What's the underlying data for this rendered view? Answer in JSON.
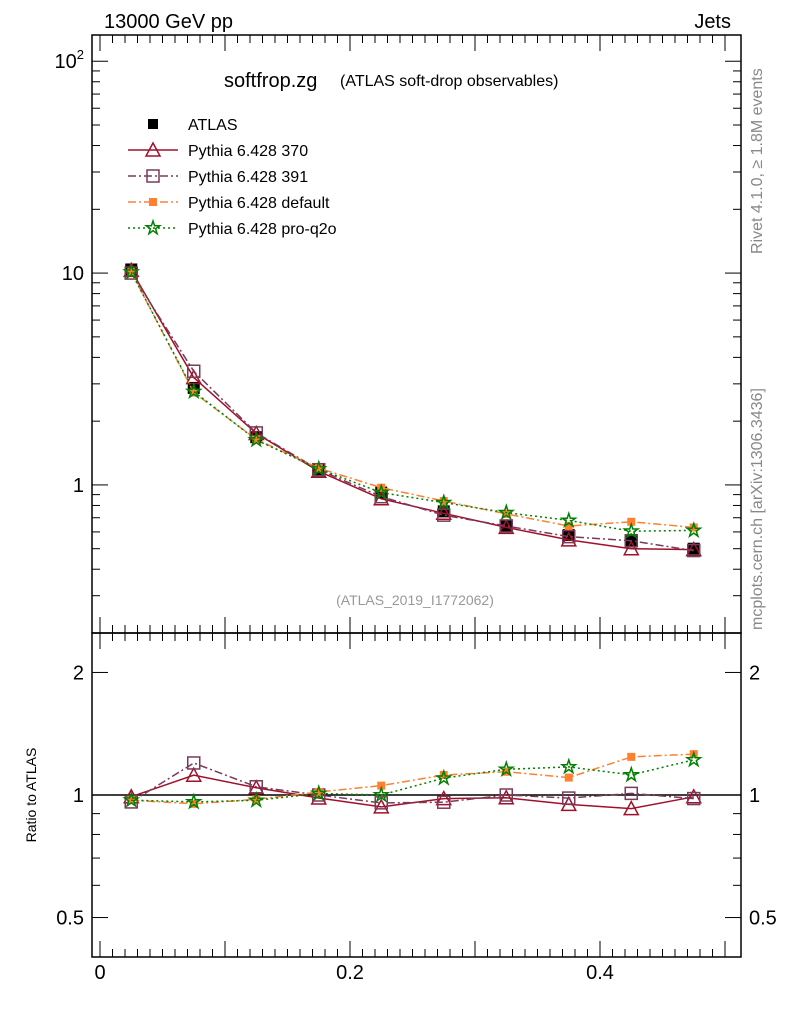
{
  "header": {
    "energy_label": "13000 GeV pp",
    "process_label": "Jets",
    "side_label_top": "Rivet 4.1.0, ≥ 1.8M events",
    "side_label_bottom": "mcplots.cern.ch [arXiv:1306.3436]"
  },
  "chart_data": {
    "type": "line",
    "title": "softfrop.zg",
    "subtitle": "(ATLAS soft-drop observables)",
    "annotation": "(ATLAS_2019_I1772062)",
    "xlabel": "",
    "ylabel": "",
    "ratio_ylabel": "Ratio to ATLAS",
    "xlim": [
      -0.0064,
      0.5128
    ],
    "ylim": [
      0.2,
      133
    ],
    "ratio_ylim": [
      0.4,
      2.5
    ],
    "yscale": "log",
    "ratio_yscale": "log",
    "legend_placement": "top-left",
    "x_tick_labels": [
      "0",
      "0.2",
      "0.4"
    ],
    "x_tick_values": [
      0,
      0.2,
      0.4
    ],
    "y_tick_labels": [
      "10^2",
      "10",
      "1"
    ],
    "y_tick_values": [
      100,
      10,
      1
    ],
    "ratio_tick_labels": [
      "2",
      "1",
      "0.5"
    ],
    "ratio_tick_values": [
      2,
      1,
      0.5
    ],
    "x": [
      0.025,
      0.075,
      0.125,
      0.175,
      0.225,
      0.275,
      0.325,
      0.375,
      0.425,
      0.475
    ],
    "reference": {
      "name": "ATLAS",
      "color": "#000000",
      "marker": "filled-square",
      "values": [
        10.4,
        2.87,
        1.68,
        1.18,
        0.92,
        0.75,
        0.64,
        0.58,
        0.54,
        0.5
      ]
    },
    "series": [
      {
        "name": "Pythia 6.428 370",
        "color": "#a0102a",
        "marker": "open-triangle",
        "line": "solid",
        "values": [
          10.3,
          3.21,
          1.75,
          1.16,
          0.86,
          0.735,
          0.63,
          0.55,
          0.5,
          0.495
        ]
      },
      {
        "name": "Pythia 6.428 391",
        "color": "#7a3a5a",
        "marker": "open-square",
        "line": "dashdot",
        "values": [
          10.0,
          3.44,
          1.76,
          1.18,
          0.88,
          0.72,
          0.64,
          0.57,
          0.545,
          0.49
        ]
      },
      {
        "name": "Pythia 6.428 default",
        "color": "#ff8030",
        "marker": "filled-square",
        "line": "dashdot-orange",
        "values": [
          10.1,
          2.73,
          1.64,
          1.2,
          0.97,
          0.84,
          0.73,
          0.64,
          0.67,
          0.63
        ]
      },
      {
        "name": "Pythia 6.428 pro-q2o",
        "color": "#008000",
        "marker": "open-star",
        "line": "dotted",
        "values": [
          10.1,
          2.76,
          1.63,
          1.19,
          0.92,
          0.825,
          0.74,
          0.68,
          0.605,
          0.61
        ]
      }
    ]
  }
}
